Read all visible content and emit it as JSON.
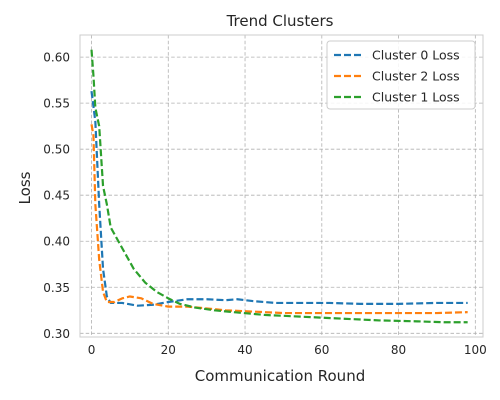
{
  "chart_data": {
    "type": "line",
    "title": "Trend Clusters",
    "xlabel": "Communication Round",
    "ylabel": "Loss",
    "xlim": [
      -3,
      102
    ],
    "ylim": [
      0.296,
      0.624
    ],
    "xticks": [
      0,
      20,
      40,
      60,
      80,
      100
    ],
    "yticks": [
      0.3,
      0.35,
      0.4,
      0.45,
      0.5,
      0.55,
      0.6
    ],
    "grid": true,
    "legend_position": "top-right",
    "series": [
      {
        "name": "Cluster 0 Loss",
        "color": "#1f77b4",
        "points": [
          [
            0,
            0.563
          ],
          [
            1,
            0.53
          ],
          [
            2,
            0.44
          ],
          [
            3,
            0.37
          ],
          [
            4,
            0.34
          ],
          [
            5,
            0.333
          ],
          [
            8,
            0.333
          ],
          [
            12,
            0.33
          ],
          [
            16,
            0.331
          ],
          [
            20,
            0.334
          ],
          [
            25,
            0.337
          ],
          [
            30,
            0.337
          ],
          [
            35,
            0.336
          ],
          [
            38,
            0.337
          ],
          [
            42,
            0.335
          ],
          [
            48,
            0.333
          ],
          [
            55,
            0.333
          ],
          [
            62,
            0.333
          ],
          [
            70,
            0.332
          ],
          [
            80,
            0.332
          ],
          [
            90,
            0.333
          ],
          [
            98,
            0.333
          ]
        ]
      },
      {
        "name": "Cluster 2 Loss",
        "color": "#ff7f0e",
        "points": [
          [
            0,
            0.527
          ],
          [
            0.5,
            0.515
          ],
          [
            1,
            0.44
          ],
          [
            2,
            0.38
          ],
          [
            3,
            0.345
          ],
          [
            4,
            0.334
          ],
          [
            6,
            0.334
          ],
          [
            8,
            0.338
          ],
          [
            10,
            0.34
          ],
          [
            13,
            0.338
          ],
          [
            16,
            0.332
          ],
          [
            20,
            0.329
          ],
          [
            25,
            0.329
          ],
          [
            30,
            0.327
          ],
          [
            35,
            0.325
          ],
          [
            40,
            0.324
          ],
          [
            50,
            0.322
          ],
          [
            60,
            0.322
          ],
          [
            70,
            0.322
          ],
          [
            80,
            0.322
          ],
          [
            90,
            0.322
          ],
          [
            98,
            0.323
          ]
        ]
      },
      {
        "name": "Cluster 1 Loss",
        "color": "#2ca02c",
        "points": [
          [
            0,
            0.608
          ],
          [
            0.5,
            0.58
          ],
          [
            1,
            0.545
          ],
          [
            2,
            0.525
          ],
          [
            3,
            0.46
          ],
          [
            4,
            0.44
          ],
          [
            5,
            0.415
          ],
          [
            7,
            0.4
          ],
          [
            9,
            0.385
          ],
          [
            11,
            0.37
          ],
          [
            14,
            0.355
          ],
          [
            17,
            0.345
          ],
          [
            20,
            0.338
          ],
          [
            23,
            0.332
          ],
          [
            27,
            0.328
          ],
          [
            32,
            0.325
          ],
          [
            37,
            0.323
          ],
          [
            45,
            0.32
          ],
          [
            55,
            0.318
          ],
          [
            65,
            0.316
          ],
          [
            75,
            0.314
          ],
          [
            85,
            0.313
          ],
          [
            92,
            0.312
          ],
          [
            98,
            0.312
          ]
        ]
      }
    ]
  }
}
